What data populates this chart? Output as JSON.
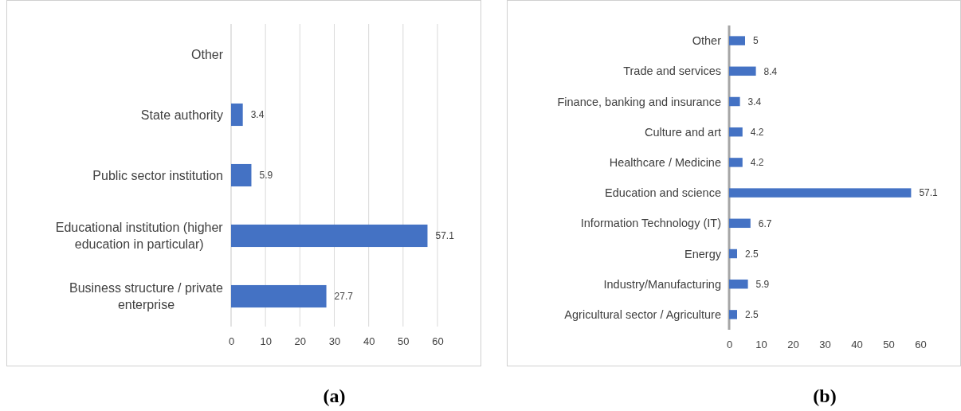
{
  "chart_data": [
    {
      "type": "bar",
      "orientation": "horizontal",
      "categories": [
        "Other",
        "State authority",
        "Public sector institution",
        "Educational institution (higher education in particular)",
        "Business structure / private enterprise"
      ],
      "values": [
        null,
        3.4,
        5.9,
        57.1,
        27.7
      ],
      "color": "#4472c4",
      "xlim": [
        0,
        60
      ],
      "xticks": [
        0,
        10,
        20,
        30,
        40,
        50,
        60
      ],
      "grid": "x",
      "data_labels": true,
      "annotations": [
        "(a)"
      ]
    },
    {
      "type": "bar",
      "orientation": "horizontal",
      "categories": [
        "Other",
        "Trade and services",
        "Finance, banking and insurance",
        "Culture and art",
        "Healthcare / Medicine",
        "Education and science",
        "Information Technology (IT)",
        "Energy",
        "Industry/Manufacturing",
        "Agricultural sector / Agriculture"
      ],
      "values": [
        5,
        8.4,
        3.4,
        4.2,
        4.2,
        57.1,
        6.7,
        2.5,
        5.9,
        2.5
      ],
      "color": "#4472c4",
      "xlim": [
        0,
        60
      ],
      "xticks": [
        0,
        10,
        20,
        30,
        40,
        50,
        60
      ],
      "data_labels": true,
      "annotations": [
        "(b)"
      ]
    }
  ]
}
